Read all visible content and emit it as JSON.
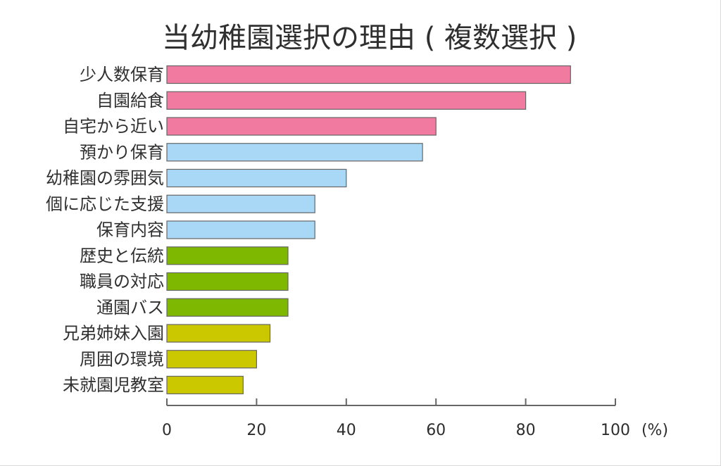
{
  "chart_data": {
    "type": "bar",
    "orientation": "horizontal",
    "title": "当幼稚園選択の理由 ( 複数選択 )",
    "xlabel": "",
    "ylabel": "",
    "x_unit_label": "(%)",
    "xlim": [
      0,
      100
    ],
    "x_ticks": [
      0,
      20,
      40,
      60,
      80,
      100
    ],
    "grid": false,
    "legend": "none",
    "categories": [
      "少人数保育",
      "自園給食",
      "自宅から近い",
      "預かり保育",
      "幼稚園の雰囲気",
      "個に応じた支援",
      "保育内容",
      "歴史と伝統",
      "職員の対応",
      "通園バス",
      "兄弟姉妹入園",
      "周囲の環境",
      "未就園児教室"
    ],
    "values": [
      90,
      80,
      60,
      57,
      40,
      33,
      33,
      27,
      27,
      27,
      23,
      20,
      17
    ],
    "bar_colors": [
      "#f07aa0",
      "#f07aa0",
      "#f07aa0",
      "#a9d8f6",
      "#a9d8f6",
      "#a9d8f6",
      "#a9d8f6",
      "#7fb800",
      "#7fb800",
      "#7fb800",
      "#cbc800",
      "#cbc800",
      "#cbc800"
    ]
  }
}
